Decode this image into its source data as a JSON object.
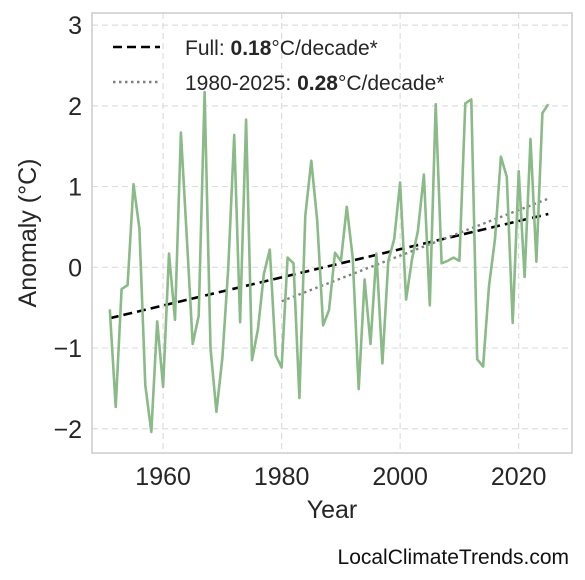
{
  "footer": {
    "credit": "LocalClimateTrends.com"
  },
  "chart_data": {
    "type": "line",
    "title": "",
    "xlabel": "Year",
    "ylabel": "Anomaly (°C)",
    "xlim": [
      1948,
      2029
    ],
    "ylim": [
      -2.3,
      3.15
    ],
    "xticks": [
      1960,
      1980,
      2000,
      2020
    ],
    "yticks": [
      -2,
      -1,
      0,
      1,
      2,
      3
    ],
    "ytick_labels": [
      "−2",
      "−1",
      "0",
      "1",
      "2",
      "3"
    ],
    "grid": true,
    "legend_position": "top-left",
    "series": [
      {
        "name": "",
        "color": "#8aba87",
        "style": "solid",
        "x": [
          1951,
          1952,
          1953,
          1954,
          1955,
          1956,
          1957,
          1958,
          1959,
          1960,
          1961,
          1962,
          1963,
          1964,
          1965,
          1966,
          1967,
          1968,
          1969,
          1970,
          1971,
          1972,
          1973,
          1974,
          1975,
          1976,
          1977,
          1978,
          1979,
          1980,
          1981,
          1982,
          1983,
          1984,
          1985,
          1986,
          1987,
          1988,
          1989,
          1990,
          1991,
          1992,
          1993,
          1994,
          1995,
          1996,
          1997,
          1998,
          1999,
          2000,
          2001,
          2002,
          2003,
          2004,
          2005,
          2006,
          2007,
          2008,
          2009,
          2010,
          2011,
          2012,
          2013,
          2014,
          2015,
          2016,
          2017,
          2018,
          2019,
          2020,
          2021,
          2022,
          2023,
          2024,
          2025
        ],
        "values": [
          -0.52,
          -1.73,
          -0.27,
          -0.22,
          1.03,
          0.48,
          -1.46,
          -2.04,
          -0.67,
          -1.48,
          0.17,
          -0.65,
          1.67,
          0.37,
          -0.95,
          -0.6,
          2.17,
          -1.0,
          -1.79,
          -1.12,
          0.0,
          1.64,
          -0.68,
          1.83,
          -1.15,
          -0.77,
          -0.08,
          0.22,
          -1.09,
          -1.24,
          0.12,
          0.05,
          -1.62,
          0.64,
          1.32,
          0.58,
          -0.72,
          -0.53,
          0.18,
          0.08,
          0.75,
          0.12,
          -1.51,
          -0.15,
          -0.95,
          0.17,
          -1.19,
          0.08,
          0.35,
          1.05,
          -0.4,
          0.1,
          0.45,
          1.15,
          -0.47,
          2.02,
          0.05,
          0.08,
          0.12,
          0.08,
          2.03,
          2.08,
          -1.14,
          -1.23,
          -0.23,
          0.35,
          1.37,
          1.12,
          -0.69,
          1.19,
          -0.12,
          1.59,
          0.07,
          1.91,
          2.02
        ]
      }
    ],
    "trends": [
      {
        "label": "Full: ",
        "value": "0.18",
        "unit": "°C/decade*",
        "color": "#000000",
        "style": "dashed",
        "x": [
          1951,
          2025
        ],
        "y": [
          -0.63,
          0.66
        ]
      },
      {
        "label": "1980-2025: ",
        "value": "0.28",
        "unit": "°C/decade*",
        "color": "#808080",
        "style": "dotted",
        "x": [
          1980,
          2025
        ],
        "y": [
          -0.42,
          0.85
        ]
      }
    ]
  }
}
